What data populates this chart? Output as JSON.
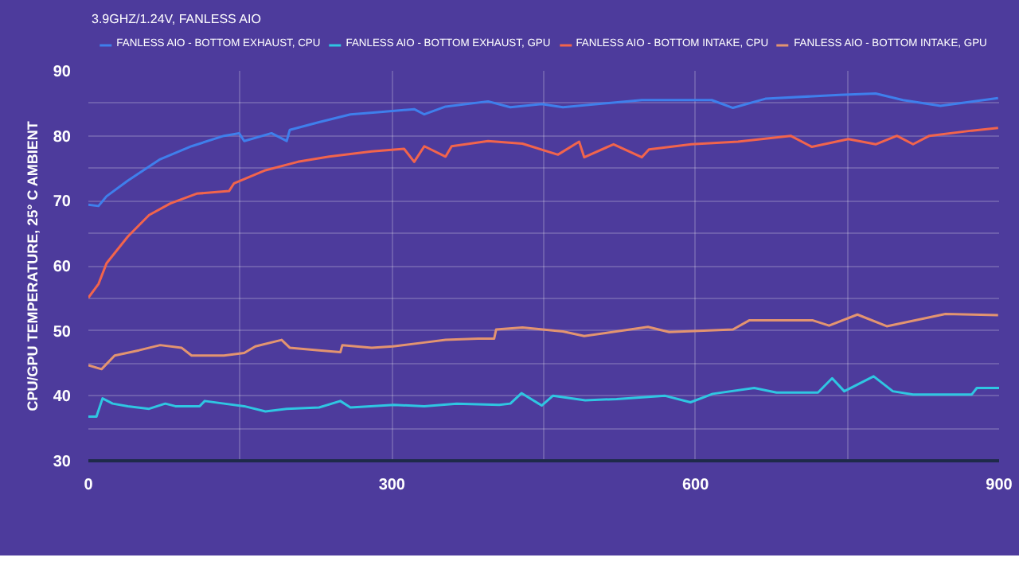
{
  "chart_data": {
    "type": "line",
    "title": "3.9GHZ/1.24V, FANLESS AIO",
    "ylabel": "CPU/GPU TEMPERATURE, 25° C AMBIENT",
    "xlim": [
      0,
      900
    ],
    "ylim": [
      30,
      90
    ],
    "xticks": [
      0,
      {
        "value": 150,
        "label": null
      },
      300,
      {
        "value": 450,
        "label": null
      },
      600,
      {
        "value": 750,
        "label": null
      },
      900
    ],
    "yticks": [
      30,
      {
        "value": 35,
        "label": null
      },
      40,
      {
        "value": 45,
        "label": null
      },
      50,
      {
        "value": 55,
        "label": null
      },
      60,
      {
        "value": 65,
        "label": null
      },
      70,
      {
        "value": 75,
        "label": null
      },
      80,
      {
        "value": 85,
        "label": null
      },
      90
    ],
    "grid": true,
    "legend": "top",
    "line_style": "solid",
    "series": [
      {
        "name": "FANLESS AIO - BOTTOM EXHAUST, CPU",
        "color": "#3f7fec",
        "x": [
          0,
          10,
          18,
          39,
          71,
          102,
          134,
          149,
          154,
          181,
          196,
          199,
          228,
          259,
          291,
          322,
          332,
          353,
          395,
          417,
          448,
          469,
          547,
          616,
          637,
          669,
          742,
          778,
          805,
          842,
          899
        ],
        "values": [
          69.4,
          69.2,
          70.7,
          73.1,
          76.4,
          78.4,
          80,
          80.4,
          79.2,
          80.4,
          79.2,
          80.9,
          82.1,
          83.3,
          83.7,
          84.1,
          83.3,
          84.5,
          85.3,
          84.4,
          84.9,
          84.4,
          85.5,
          85.5,
          84.3,
          85.7,
          86.3,
          86.5,
          85.5,
          84.6,
          85.8
        ]
      },
      {
        "name": "FANLESS AIO - BOTTOM EXHAUST, GPU",
        "color": "#2fc6e2",
        "x": [
          0,
          8,
          14,
          24,
          39,
          60,
          76,
          86,
          110,
          115,
          134,
          154,
          175,
          196,
          228,
          249,
          259,
          302,
          332,
          364,
          406,
          417,
          428,
          448,
          459,
          491,
          522,
          570,
          595,
          617,
          658,
          680,
          721,
          735,
          747,
          776,
          795,
          815,
          873,
          878,
          900
        ],
        "values": [
          36.8,
          36.8,
          39.6,
          38.8,
          38.4,
          38,
          38.8,
          38.4,
          38.4,
          39.2,
          38.8,
          38.4,
          37.6,
          38,
          38.2,
          39.2,
          38.2,
          38.6,
          38.4,
          38.8,
          38.6,
          38.8,
          40.4,
          38.5,
          40,
          39.3,
          39.5,
          40,
          39,
          40.3,
          41.2,
          40.5,
          40.5,
          42.7,
          40.7,
          43,
          40.7,
          40.2,
          40.2,
          41.2,
          41.2
        ]
      },
      {
        "name": "FANLESS AIO - BOTTOM INTAKE, CPU",
        "color": "#f2644c",
        "x": [
          0,
          10,
          18,
          39,
          60,
          81,
          107,
          139,
          144,
          175,
          207,
          238,
          280,
          312,
          322,
          332,
          353,
          359,
          395,
          429,
          464,
          485,
          490,
          519,
          547,
          554,
          596,
          642,
          694,
          715,
          751,
          778,
          799,
          815,
          831,
          873,
          899
        ],
        "values": [
          55.1,
          57.2,
          60.4,
          64.5,
          67.8,
          69.6,
          71.1,
          71.5,
          72.7,
          74.7,
          76,
          76.8,
          77.6,
          78,
          76,
          78.4,
          76.8,
          78.4,
          79.2,
          78.8,
          77.1,
          79.1,
          76.7,
          78.7,
          76.7,
          77.9,
          78.7,
          79.1,
          80,
          78.3,
          79.5,
          78.7,
          80,
          78.7,
          80,
          80.8,
          81.2
        ]
      },
      {
        "name": "FANLESS AIO - BOTTOM INTAKE, GPU",
        "color": "#e39470",
        "x": [
          0,
          13,
          26,
          50,
          71,
          92,
          102,
          134,
          154,
          165,
          191,
          199,
          228,
          249,
          251,
          280,
          301,
          332,
          353,
          385,
          401,
          403,
          429,
          469,
          490,
          553,
          574,
          637,
          653,
          716,
          732,
          760,
          789,
          847,
          899
        ],
        "values": [
          44.7,
          44.1,
          46.2,
          47,
          47.8,
          47.4,
          46.2,
          46.2,
          46.6,
          47.6,
          48.6,
          47.4,
          47,
          46.7,
          47.8,
          47.4,
          47.6,
          48.2,
          48.6,
          48.8,
          48.8,
          50.2,
          50.5,
          49.9,
          49.2,
          50.6,
          49.8,
          50.2,
          51.6,
          51.6,
          50.8,
          52.5,
          50.7,
          52.6,
          52.4
        ]
      }
    ]
  }
}
